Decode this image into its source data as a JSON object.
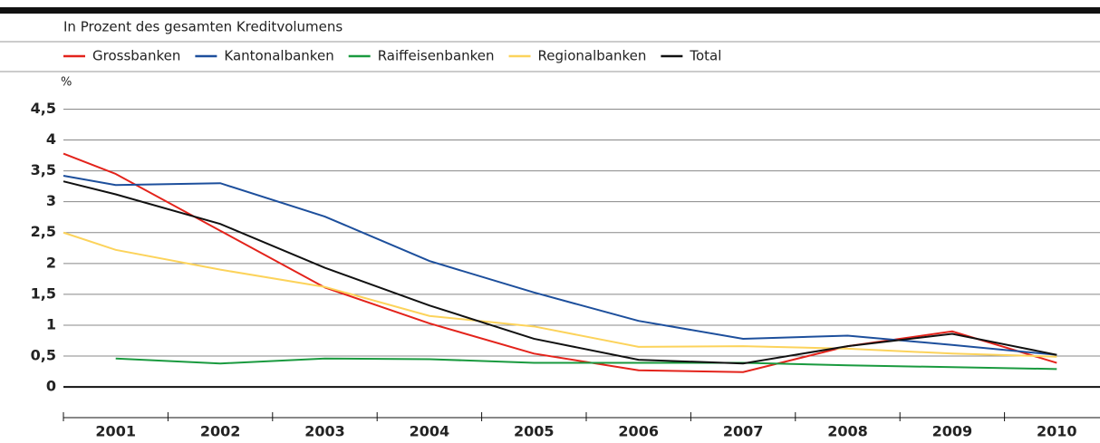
{
  "chart_data": {
    "type": "line",
    "subtitle": "In Prozent des gesamten Kreditvolumens",
    "y_unit": "%",
    "x": [
      2000.5,
      2001,
      2002,
      2003,
      2004,
      2005,
      2006,
      2007,
      2008,
      2009,
      2010
    ],
    "xlim": [
      2000.5,
      2010.5
    ],
    "xticks": [
      2001,
      2002,
      2003,
      2004,
      2005,
      2006,
      2007,
      2008,
      2009,
      2010
    ],
    "ylim": [
      -0.6,
      4.8
    ],
    "yticks": [
      0,
      {
        "value": 0.5,
        "label": "0,5"
      },
      1,
      {
        "value": 1.5,
        "label": "1,5"
      },
      2,
      {
        "value": 2.5,
        "label": "2,5"
      },
      3,
      {
        "value": 3.5,
        "label": "3,5"
      },
      4,
      {
        "value": 4.5,
        "label": "4,5"
      }
    ],
    "grid": true,
    "series": [
      {
        "name": "Grossbanken",
        "color": "#e3231b",
        "values": [
          3.78,
          3.45,
          2.53,
          1.61,
          1.03,
          0.54,
          0.27,
          0.24,
          0.66,
          0.9,
          0.39
        ]
      },
      {
        "name": "Kantonalbanken",
        "color": "#1d4f9c",
        "values": [
          3.42,
          3.27,
          3.3,
          2.76,
          2.04,
          1.53,
          1.07,
          0.78,
          0.83,
          0.68,
          0.52
        ]
      },
      {
        "name": "Raiffeisenbanken",
        "color": "#1a9a3f",
        "values": [
          null,
          0.46,
          0.38,
          0.46,
          0.45,
          0.39,
          0.39,
          0.39,
          0.35,
          0.32,
          0.29
        ]
      },
      {
        "name": "Regionalbanken",
        "color": "#fcd35b",
        "values": [
          2.5,
          2.22,
          1.9,
          1.62,
          1.15,
          0.98,
          0.65,
          0.66,
          0.62,
          0.54,
          0.49
        ]
      },
      {
        "name": "Total",
        "color": "#111111",
        "values": [
          3.33,
          3.12,
          2.64,
          1.93,
          1.32,
          0.78,
          0.44,
          0.38,
          0.66,
          0.86,
          0.52
        ]
      }
    ]
  }
}
